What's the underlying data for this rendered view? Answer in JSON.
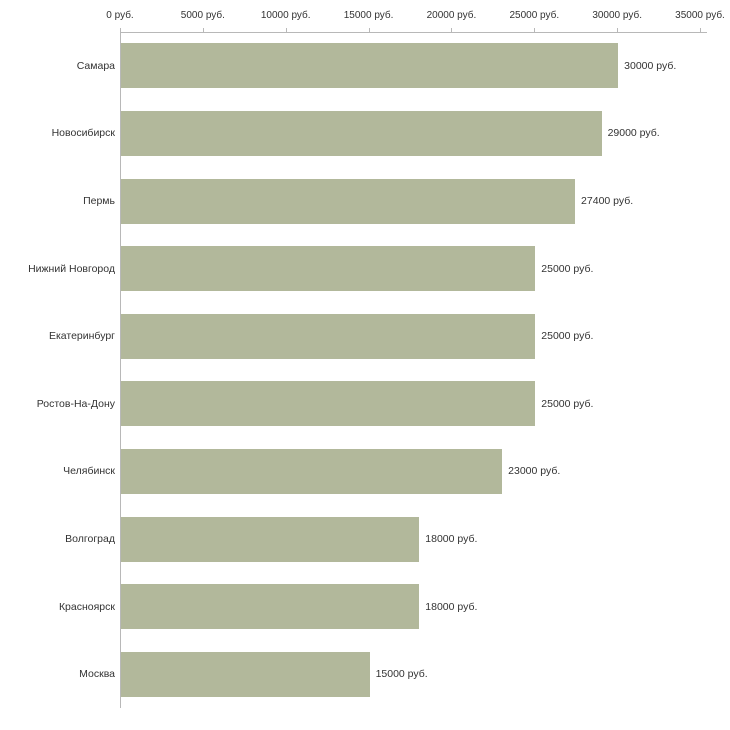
{
  "chart_data": {
    "type": "bar",
    "orientation": "horizontal",
    "title": "",
    "xlabel": "",
    "ylabel": "",
    "categories": [
      "Самара",
      "Новосибирск",
      "Пермь",
      "Нижний Новгород",
      "Екатеринбург",
      "Ростов-На-Дону",
      "Челябинск",
      "Волгоград",
      "Красноярск",
      "Москва"
    ],
    "values": [
      30000,
      29000,
      27400,
      25000,
      25000,
      25000,
      23000,
      18000,
      18000,
      15000
    ],
    "value_labels": [
      "30000 руб.",
      "29000 руб.",
      "27400 руб.",
      "25000 руб.",
      "25000 руб.",
      "25000 руб.",
      "23000 руб.",
      "18000 руб.",
      "18000 руб.",
      "15000 руб."
    ],
    "x_ticks": [
      0,
      5000,
      10000,
      15000,
      20000,
      25000,
      30000,
      35000
    ],
    "x_tick_labels": [
      "0 руб.",
      "5000 руб.",
      "10000 руб.",
      "15000 руб.",
      "20000 руб.",
      "25000 руб.",
      "30000 руб.",
      "35000 руб."
    ],
    "xlim": [
      0,
      35000
    ],
    "grid": false,
    "legend": "none",
    "colors": {
      "bar": "#b2b89b",
      "axis": "#b8b8b8",
      "text": "#333333",
      "background": "#ffffff"
    }
  }
}
